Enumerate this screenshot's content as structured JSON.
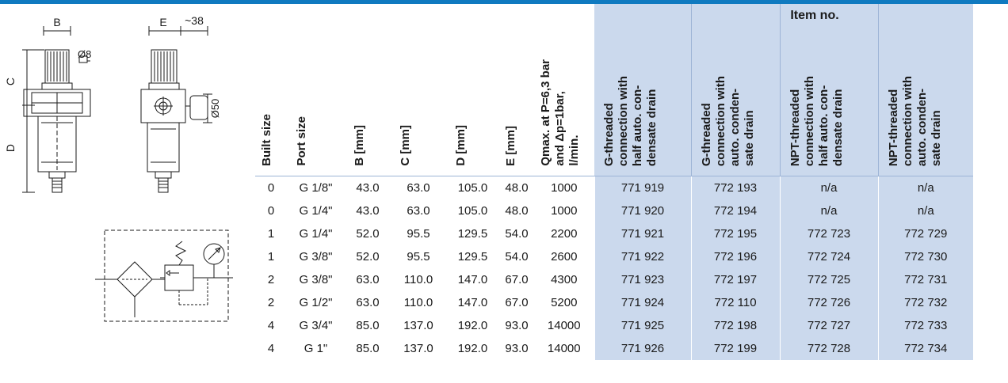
{
  "dimension_labels": {
    "b": "B",
    "e": "E",
    "approx38": "~38",
    "c": "C",
    "d": "D",
    "dia8": "Ø8",
    "dia50": "Ø50"
  },
  "table": {
    "item_no_header": "Item no.",
    "columns": [
      "Built size",
      "Port size",
      "B [mm]",
      "C [mm]",
      "D [mm]",
      "E [mm]",
      "Qmax. at P=6,3 bar\nand Δp=1bar,\nl/min.",
      "G-threaded\nconnection with\nhalf auto. con-\ndensate drain",
      "G-threaded\nconnection with\nauto. conden-\nsate drain",
      "NPT-threaded\nconnection with\nhalf auto. con-\ndensate drain",
      "NPT-threaded\nconnection with\nauto. conden-\nsate drain"
    ],
    "rows": [
      [
        "0",
        "G 1/8\"",
        "43.0",
        "63.0",
        "105.0",
        "48.0",
        "1000",
        "771 919",
        "772 193",
        "n/a",
        "n/a"
      ],
      [
        "0",
        "G 1/4\"",
        "43.0",
        "63.0",
        "105.0",
        "48.0",
        "1000",
        "771 920",
        "772 194",
        "n/a",
        "n/a"
      ],
      [
        "1",
        "G 1/4\"",
        "52.0",
        "95.5",
        "129.5",
        "54.0",
        "2200",
        "771 921",
        "772 195",
        "772 723",
        "772 729"
      ],
      [
        "1",
        "G 3/8\"",
        "52.0",
        "95.5",
        "129.5",
        "54.0",
        "2600",
        "771 922",
        "772 196",
        "772 724",
        "772 730"
      ],
      [
        "2",
        "G 3/8\"",
        "63.0",
        "110.0",
        "147.0",
        "67.0",
        "4300",
        "771 923",
        "772 197",
        "772 725",
        "772 731"
      ],
      [
        "2",
        "G 1/2\"",
        "63.0",
        "110.0",
        "147.0",
        "67.0",
        "5200",
        "771 924",
        "772 110",
        "772 726",
        "772 732"
      ],
      [
        "4",
        "G 3/4\"",
        "85.0",
        "137.0",
        "192.0",
        "93.0",
        "14000",
        "771 925",
        "772 198",
        "772 727",
        "772 733"
      ],
      [
        "4",
        "G 1\"",
        "85.0",
        "137.0",
        "192.0",
        "93.0",
        "14000",
        "771 926",
        "772 199",
        "772 728",
        "772 734"
      ]
    ]
  }
}
